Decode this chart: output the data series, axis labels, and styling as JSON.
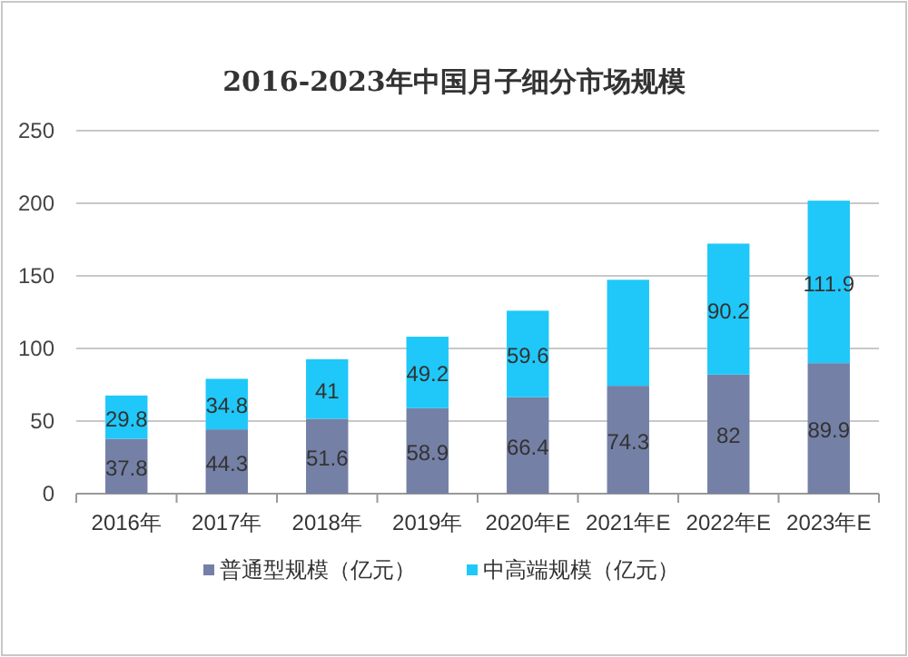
{
  "chart_data": {
    "type": "bar",
    "title": "2016-2023年中国月子细分市场规模",
    "categories": [
      "2016年",
      "2017年",
      "2018年",
      "2019年",
      "2020年E",
      "2021年E",
      "2022年E",
      "2023年E"
    ],
    "stacked": true,
    "ylim": [
      0,
      250
    ],
    "yticks": [
      0,
      50,
      100,
      150,
      200,
      250
    ],
    "grid": "y",
    "legend": "bottom",
    "series": [
      {
        "name": "普通型规模（亿元）",
        "color": "#7580a6",
        "values": [
          37.8,
          44.3,
          51.6,
          58.9,
          66.4,
          74.3,
          82,
          89.9
        ],
        "value_labels": [
          "37.8",
          "44.3",
          "51.6",
          "58.9",
          "66.4",
          "74.3",
          "82",
          "89.9"
        ]
      },
      {
        "name": "中高端规模（亿元）",
        "color": "#1fc8f8",
        "values": [
          29.8,
          34.8,
          41,
          49.2,
          59.6,
          73,
          90.2,
          111.9
        ],
        "value_labels": [
          "29.8",
          "34.8",
          "41",
          "49.2",
          "59.6",
          null,
          "90.2",
          "111.9"
        ]
      }
    ]
  }
}
